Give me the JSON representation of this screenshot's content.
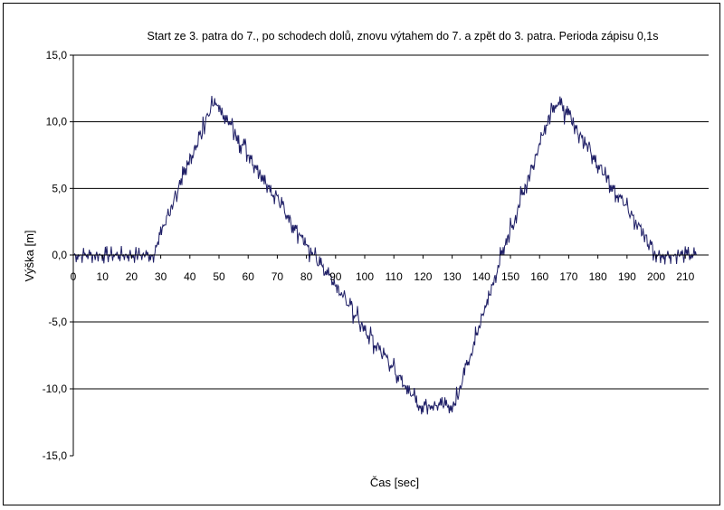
{
  "chart_data": {
    "type": "line",
    "title": "Start ze 3. patra do 7., po schodech dolů, znovu výtahem do 7. a zpět do 3. patra. Perioda zápisu 0,1s",
    "xlabel": "Čas [sec]",
    "ylabel": "Výška [m]",
    "xlim": [
      0,
      218
    ],
    "ylim": [
      -15,
      15
    ],
    "x_ticks": [
      0,
      10,
      20,
      30,
      40,
      50,
      60,
      70,
      80,
      90,
      100,
      110,
      120,
      130,
      140,
      150,
      160,
      170,
      180,
      190,
      200,
      210
    ],
    "x_tick_labels": [
      "0",
      "10",
      "20",
      "30",
      "40",
      "50",
      "60",
      "70",
      "80",
      "90",
      "100",
      "110",
      "120",
      "130",
      "140",
      "150",
      "160",
      "170",
      "180",
      "190",
      "200",
      "210"
    ],
    "y_ticks": [
      15,
      10,
      5,
      0,
      -5,
      -10,
      -15
    ],
    "y_tick_labels": [
      "15,0",
      "10,0",
      "5,0",
      "0,0",
      "-5,0",
      "-10,0",
      "-15,0"
    ],
    "grid": "horizontal major gridlines",
    "legend": "none",
    "series_color": "#1f1f66",
    "series": [
      {
        "x": [
          0,
          27,
          47,
          50,
          82,
          118,
          131,
          147,
          164,
          168,
          200,
          205,
          214
        ],
        "y": [
          0,
          0,
          11,
          11,
          0,
          -11,
          -11,
          0,
          11,
          11,
          0,
          0,
          0
        ]
      }
    ]
  }
}
